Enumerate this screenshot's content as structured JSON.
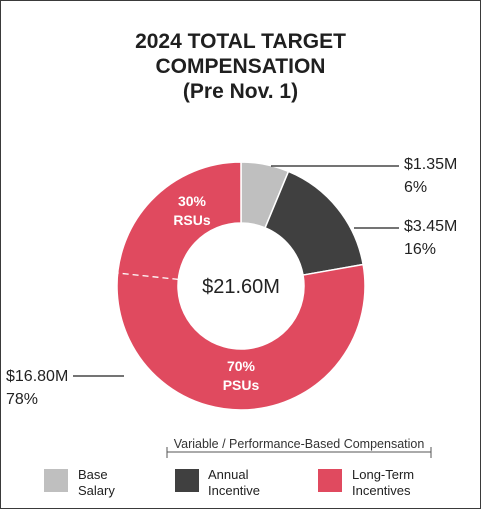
{
  "title": {
    "line1": "2024 TOTAL TARGET",
    "line2": "COMPENSATION",
    "line3": "(Pre Nov. 1)"
  },
  "chart_data": {
    "type": "pie",
    "center_label": "$21.60M",
    "slices": [
      {
        "key": "base",
        "value": 1.35,
        "value_label": "$1.35M",
        "percent_label": "6%",
        "color": "#bfbfbf"
      },
      {
        "key": "annual",
        "value": 3.45,
        "value_label": "$3.45M",
        "percent_label": "16%",
        "color": "#404040"
      },
      {
        "key": "lti",
        "value": 16.8,
        "value_label": "$16.80M",
        "percent_label": "78%",
        "color": "#e04a5f",
        "sub_segments": [
          {
            "percent_label": "30%",
            "label": "RSUs",
            "fraction": 0.3
          },
          {
            "percent_label": "70%",
            "label": "PSUs",
            "fraction": 0.7
          }
        ]
      }
    ],
    "bracket_label": "Variable / Performance-Based Compensation",
    "legend": [
      {
        "line1": "Base",
        "line2": "Salary",
        "color": "#bfbfbf"
      },
      {
        "line1": "Annual",
        "line2": "Incentive",
        "color": "#404040"
      },
      {
        "line1": "Long-Term",
        "line2": "Incentives",
        "color": "#e04a5f"
      }
    ]
  }
}
